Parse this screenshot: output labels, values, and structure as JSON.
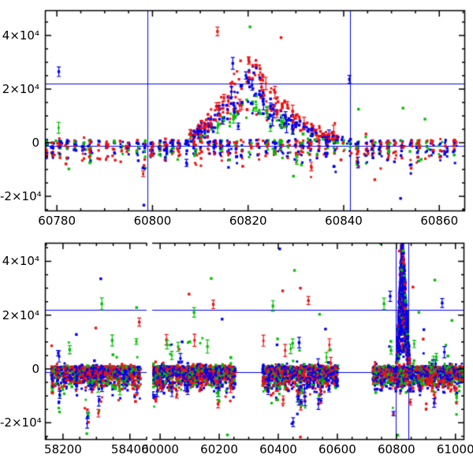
{
  "figure": {
    "background": "#ffffff",
    "axis_color": "#000000",
    "ref_line_color": "#0000ff",
    "point_colors": {
      "red": "#ee1111",
      "green": "#00bf00",
      "blue": "#0000ee"
    }
  },
  "chart_data": {
    "type": "scatter",
    "legend": "none",
    "grid": false,
    "panels": [
      {
        "id": "top",
        "y_axis": {
          "range": [
            -25600,
            49400
          ],
          "major_ticks": [
            40000,
            20000,
            0,
            -20000
          ],
          "tick_labels": [
            "4×10⁴",
            "2×10⁴",
            "0",
            "-2×10⁴"
          ],
          "minor_step": 5000
        },
        "x_axis": {
          "segments": [
            {
              "range": [
                60777.5,
                60865.4
              ],
              "major_ticks": [
                60780,
                60800,
                60820,
                60840,
                60860
              ],
              "tick_labels": [
                "60780",
                "60800",
                "60820",
                "60840",
                "60860"
              ]
            }
          ],
          "minor_step": 5
        },
        "ref_lines": {
          "horizontal": [
            22000,
            -1200
          ],
          "vertical": [
            60799,
            60841.3
          ]
        },
        "baseline_clusters": [
          {
            "x_range": [
              60777.8,
              60864.9
            ],
            "col_spacing": 1.55,
            "col_sigma": 0.2,
            "pts_min": 10,
            "pts_max": 22,
            "band_center": -1500,
            "band_sigma": 2600,
            "deep_frac": 0.22,
            "deep_min": 4000,
            "deep_max": 15000,
            "extreme_frac": 0.05,
            "extreme_max": 21000,
            "up_frac": 0.1,
            "up_min": 3000,
            "up_max": 10000,
            "colors": [
              "red",
              "blue",
              "green"
            ],
            "weights": [
              0.42,
              0.42,
              0.16
            ]
          }
        ],
        "flare": {
          "x_range": [
            60808,
            60839
          ],
          "col_spacing": 0.75,
          "pts_min": 6,
          "pts_max": 14,
          "envelope": [
            [
              60808,
              4000
            ],
            [
              60810,
              7000
            ],
            [
              60812,
              11000
            ],
            [
              60814,
              16000
            ],
            [
              60815,
              19000
            ],
            [
              60816,
              22000
            ],
            [
              60817,
              25000
            ],
            [
              60818,
              27000
            ],
            [
              60819,
              30000
            ],
            [
              60820,
              33000
            ],
            [
              60821,
              36000
            ],
            [
              60822,
              32000
            ],
            [
              60823,
              26000
            ],
            [
              60824,
              22000
            ],
            [
              60825,
              20000
            ],
            [
              60826,
              18000
            ],
            [
              60827,
              17000
            ],
            [
              60828,
              15000
            ],
            [
              60829,
              13500
            ],
            [
              60830,
              11000
            ],
            [
              60831,
              9500
            ],
            [
              60832,
              8000
            ],
            [
              60833,
              7000
            ],
            [
              60834,
              6000
            ],
            [
              60835,
              5000
            ],
            [
              60836,
              4000
            ],
            [
              60838,
              2500
            ]
          ],
          "colors": [
            "red",
            "blue",
            "green"
          ],
          "weights": [
            0.45,
            0.42,
            0.13
          ],
          "color_scale": {
            "red": 1.0,
            "blue": 0.8,
            "green": 0.55
          },
          "err_frac": 0.15
        },
        "outliers": [
          {
            "x": 60780.4,
            "y": 26500,
            "c": "blue",
            "err": 1800
          },
          {
            "x": 60782.5,
            "y": -9800,
            "c": "green"
          },
          {
            "x": 60798.2,
            "y": -23300,
            "c": "blue"
          },
          {
            "x": 60813.6,
            "y": 41500,
            "c": "red",
            "err": 1600
          },
          {
            "x": 60816.8,
            "y": 29600,
            "c": "blue",
            "err": 2200
          },
          {
            "x": 60820.4,
            "y": 43200,
            "c": "green"
          },
          {
            "x": 60826.9,
            "y": 39200,
            "c": "red"
          },
          {
            "x": 60822.8,
            "y": 20800,
            "c": "red",
            "err": 1400
          },
          {
            "x": 60841.2,
            "y": 23600,
            "c": "blue",
            "err": 1500
          },
          {
            "x": 60829.5,
            "y": -12500,
            "c": "green"
          },
          {
            "x": 60846.5,
            "y": -13800,
            "c": "red"
          },
          {
            "x": 60851.9,
            "y": -20800,
            "c": "blue"
          },
          {
            "x": 60857.0,
            "y": 8800,
            "c": "green"
          },
          {
            "x": 60843.1,
            "y": 12500,
            "c": "green"
          },
          {
            "x": 60852.4,
            "y": 12900,
            "c": "green"
          }
        ]
      },
      {
        "id": "bottom",
        "y_axis": {
          "range": [
            -26350,
            46850
          ],
          "major_ticks": [
            40000,
            20000,
            0,
            -20000
          ],
          "tick_labels": [
            "4×10⁴",
            "2×10⁴",
            "0",
            "-2×10⁴"
          ],
          "minor_step": 5000
        },
        "x_axis": {
          "segments": [
            {
              "range": [
                58146,
                58450
              ],
              "major_ticks": [
                58200,
                58400
              ],
              "tick_labels": [
                "58200",
                "58400"
              ]
            },
            {
              "range": [
                59973,
                61030
              ],
              "major_ticks": [
                60000,
                60200,
                60400,
                60600,
                60800,
                61000
              ],
              "tick_labels": [
                "60000",
                "60200",
                "60400",
                "60600",
                "60800",
                "61000"
              ]
            }
          ],
          "minor_step": 50
        },
        "ref_lines": {
          "horizontal": [
            22000,
            -1200
          ],
          "vertical": [
            60799,
            60841.3
          ]
        },
        "baseline_clusters": [
          {
            "x_range": [
              58168,
              58428
            ],
            "col_spacing": 7,
            "col_sigma": 2,
            "pts_min": 18,
            "pts_max": 40,
            "band_center": -1500,
            "band_sigma": 2800,
            "deep_frac": 0.35,
            "deep_min": 4000,
            "deep_max": 17000,
            "extreme_frac": 0.06,
            "extreme_max": 25000,
            "up_frac": 0.25,
            "up_min": 2500,
            "up_max": 13000,
            "colors": [
              "red",
              "blue",
              "green"
            ],
            "weights": [
              0.38,
              0.44,
              0.18
            ]
          },
          {
            "x_range": [
              59978,
              60252
            ],
            "col_spacing": 7,
            "col_sigma": 2,
            "pts_min": 18,
            "pts_max": 40,
            "band_center": -1500,
            "band_sigma": 2800,
            "deep_frac": 0.35,
            "deep_min": 4000,
            "deep_max": 17000,
            "extreme_frac": 0.06,
            "extreme_max": 25000,
            "up_frac": 0.25,
            "up_min": 2500,
            "up_max": 13000,
            "colors": [
              "red",
              "blue",
              "green"
            ],
            "weights": [
              0.38,
              0.44,
              0.18
            ]
          },
          {
            "x_range": [
              60350,
              60605
            ],
            "col_spacing": 7,
            "col_sigma": 2,
            "pts_min": 18,
            "pts_max": 40,
            "band_center": -1500,
            "band_sigma": 2800,
            "deep_frac": 0.35,
            "deep_min": 4000,
            "deep_max": 17000,
            "extreme_frac": 0.06,
            "extreme_max": 25000,
            "up_frac": 0.25,
            "up_min": 2500,
            "up_max": 13000,
            "colors": [
              "red",
              "blue",
              "green"
            ],
            "weights": [
              0.38,
              0.44,
              0.18
            ]
          },
          {
            "x_range": [
              60722,
              61025
            ],
            "col_spacing": 7,
            "col_sigma": 2,
            "pts_min": 20,
            "pts_max": 42,
            "band_center": -1500,
            "band_sigma": 2800,
            "deep_frac": 0.35,
            "deep_min": 4000,
            "deep_max": 17000,
            "extreme_frac": 0.06,
            "extreme_max": 25000,
            "up_frac": 0.25,
            "up_min": 2500,
            "up_max": 13000,
            "colors": [
              "red",
              "blue",
              "green"
            ],
            "weights": [
              0.38,
              0.44,
              0.18
            ]
          }
        ],
        "spike": {
          "x_range": [
            60800,
            60846
          ],
          "peak_x": 60819,
          "peak_y": 52000,
          "rise": 19,
          "fall": 27,
          "col_spacing": 0.9,
          "base_pts": 3,
          "max_pts": 26,
          "colors": [
            "blue",
            "red",
            "green"
          ],
          "weights": [
            0.74,
            0.19,
            0.07
          ]
        },
        "outliers": [
          {
            "x": 58313,
            "y": 33500,
            "c": "blue"
          },
          {
            "x": 58316,
            "y": 24200,
            "c": "green",
            "err": 2200
          },
          {
            "x": 58420,
            "y": 22800,
            "c": "green"
          },
          {
            "x": 58428,
            "y": 17400,
            "c": "red",
            "err": 1500
          },
          {
            "x": 58298,
            "y": 15200,
            "c": "red"
          },
          {
            "x": 58240,
            "y": 12800,
            "c": "blue"
          },
          {
            "x": 60098,
            "y": 27800,
            "c": "red"
          },
          {
            "x": 60173,
            "y": 33600,
            "c": "green"
          },
          {
            "x": 60115,
            "y": 21000,
            "c": "green",
            "err": 1800
          },
          {
            "x": 60180,
            "y": 24000,
            "c": "red",
            "err": 1600
          },
          {
            "x": 60210,
            "y": 18500,
            "c": "blue"
          },
          {
            "x": 60405,
            "y": 44600,
            "c": "blue"
          },
          {
            "x": 60455,
            "y": 36600,
            "c": "green"
          },
          {
            "x": 60475,
            "y": 30000,
            "c": "red"
          },
          {
            "x": 60502,
            "y": 25400,
            "c": "red",
            "err": 1500
          },
          {
            "x": 60415,
            "y": 29000,
            "c": "red"
          },
          {
            "x": 60382,
            "y": 23400,
            "c": "green",
            "err": 2000
          },
          {
            "x": 60540,
            "y": 20300,
            "c": "green"
          },
          {
            "x": 60560,
            "y": 14800,
            "c": "blue"
          },
          {
            "x": 60746,
            "y": 46600,
            "c": "green"
          },
          {
            "x": 60758,
            "y": 24200,
            "c": "green",
            "err": 2100
          },
          {
            "x": 60779,
            "y": 27000,
            "c": "blue",
            "err": 1900
          },
          {
            "x": 60810,
            "y": 43800,
            "c": "red"
          },
          {
            "x": 60818,
            "y": 36800,
            "c": "green"
          },
          {
            "x": 60856,
            "y": 30400,
            "c": "red"
          },
          {
            "x": 60876,
            "y": 21000,
            "c": "green"
          },
          {
            "x": 60893,
            "y": 14600,
            "c": "blue"
          },
          {
            "x": 60930,
            "y": 33000,
            "c": "green"
          },
          {
            "x": 60955,
            "y": 24500,
            "c": "blue",
            "err": 1700
          },
          {
            "x": 60988,
            "y": 18000,
            "c": "green"
          },
          {
            "x": 60228,
            "y": -24500,
            "c": "green"
          },
          {
            "x": 60475,
            "y": -25300,
            "c": "red"
          },
          {
            "x": 60805,
            "y": -24600,
            "c": "green"
          }
        ]
      }
    ]
  }
}
